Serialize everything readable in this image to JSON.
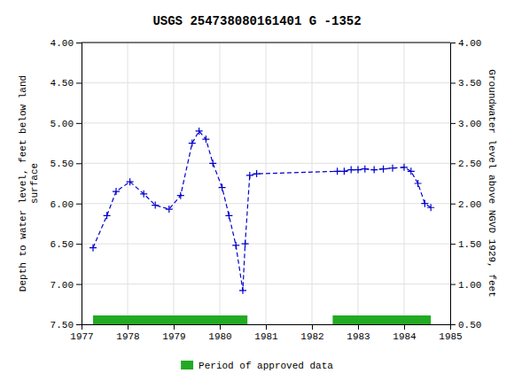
{
  "chart_data": {
    "type": "line",
    "title": "USGS 254738080161401 G  -1352",
    "ylabel": "Depth to water level, feet below land\nsurface",
    "y2label": "Groundwater level above NGVD 1929, feet",
    "x": [
      1977.25,
      1977.55,
      1977.75,
      1978.05,
      1978.35,
      1978.6,
      1978.9,
      1979.15,
      1979.4,
      1979.55,
      1979.7,
      1979.85,
      1980.05,
      1980.2,
      1980.35,
      1980.5,
      1980.55,
      1980.65,
      1980.8,
      1982.55,
      1982.7,
      1982.85,
      1983.0,
      1983.15,
      1983.35,
      1983.55,
      1983.75,
      1984.0,
      1984.15,
      1984.3,
      1984.45,
      1984.58
    ],
    "values": [
      6.55,
      6.15,
      5.85,
      5.73,
      5.88,
      6.02,
      6.07,
      5.9,
      5.25,
      5.1,
      5.2,
      5.5,
      5.8,
      6.15,
      6.52,
      7.08,
      6.5,
      5.65,
      5.63,
      5.6,
      5.6,
      5.58,
      5.58,
      5.57,
      5.58,
      5.57,
      5.56,
      5.55,
      5.6,
      5.75,
      6.0,
      6.05
    ],
    "color": "#0000cc",
    "line_style": "dashed",
    "marker": "plus",
    "xlim": [
      1977,
      1985
    ],
    "xticks": [
      1977,
      1978,
      1979,
      1980,
      1981,
      1982,
      1983,
      1984,
      1985
    ],
    "ylim": [
      7.5,
      4.0
    ],
    "yticks": [
      {
        "value": 4.0,
        "label": "4.00"
      },
      {
        "value": 4.5,
        "label": "4.50"
      },
      {
        "value": 5.0,
        "label": "5.00"
      },
      {
        "value": 5.5,
        "label": "5.50"
      },
      {
        "value": 6.0,
        "label": "6.00"
      },
      {
        "value": 6.5,
        "label": "6.50"
      },
      {
        "value": 7.0,
        "label": "7.00"
      },
      {
        "value": 7.5,
        "label": "7.50"
      }
    ],
    "y2lim": [
      0.5,
      4.0
    ],
    "y2ticks": [
      {
        "value": 0.5,
        "label": "0.50"
      },
      {
        "value": 1.0,
        "label": "1.00"
      },
      {
        "value": 1.5,
        "label": "1.50"
      },
      {
        "value": 2.0,
        "label": "2.00"
      },
      {
        "value": 2.5,
        "label": "2.50"
      },
      {
        "value": 3.0,
        "label": "3.00"
      },
      {
        "value": 3.5,
        "label": "3.50"
      },
      {
        "value": 4.0,
        "label": "4.00"
      }
    ],
    "periods": [
      {
        "name": "Period of approved data",
        "color": "#22aa22",
        "ranges": [
          [
            1977.25,
            1980.6
          ],
          [
            1982.45,
            1984.58
          ]
        ]
      }
    ],
    "grid": true,
    "legend": "bottom"
  }
}
